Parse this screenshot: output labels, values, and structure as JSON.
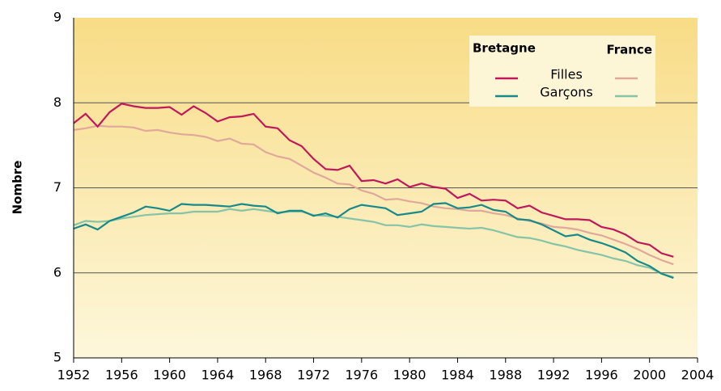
{
  "chart_data": {
    "type": "line",
    "y_label": "Nombre",
    "x": [
      1952,
      1953,
      1954,
      1955,
      1956,
      1957,
      1958,
      1959,
      1960,
      1961,
      1962,
      1963,
      1964,
      1965,
      1966,
      1967,
      1968,
      1969,
      1970,
      1971,
      1972,
      1973,
      1974,
      1975,
      1976,
      1977,
      1978,
      1979,
      1980,
      1981,
      1982,
      1983,
      1984,
      1985,
      1986,
      1987,
      1988,
      1989,
      1990,
      1991,
      1992,
      1993,
      1994,
      1995,
      1996,
      1997,
      1998,
      1999,
      2000,
      2001,
      2002
    ],
    "xlim": [
      1952,
      2004
    ],
    "xticks": [
      1952,
      1956,
      1960,
      1964,
      1968,
      1972,
      1976,
      1980,
      1984,
      1988,
      1992,
      1996,
      2000,
      2004
    ],
    "ylim": [
      5,
      9
    ],
    "yticks": [
      5,
      6,
      7,
      8,
      9
    ],
    "grid": true,
    "legend": "top-right",
    "series_groups": [
      {
        "name": "Bretagne",
        "series": [
          {
            "name": "Filles",
            "color": "#c0185a",
            "values": [
              7.76,
              7.87,
              7.72,
              7.89,
              7.99,
              7.96,
              7.94,
              7.94,
              7.95,
              7.86,
              7.96,
              7.88,
              7.78,
              7.83,
              7.84,
              7.87,
              7.72,
              7.7,
              7.56,
              7.49,
              7.34,
              7.22,
              7.21,
              7.26,
              7.08,
              7.09,
              7.05,
              7.1,
              7.01,
              7.05,
              7.01,
              6.99,
              6.88,
              6.93,
              6.85,
              6.86,
              6.85,
              6.76,
              6.79,
              6.71,
              6.67,
              6.63,
              6.63,
              6.62,
              6.54,
              6.51,
              6.45,
              6.36,
              6.33,
              6.23,
              6.19
            ]
          },
          {
            "name": "Garçons",
            "color": "#168a8a",
            "values": [
              6.52,
              6.57,
              6.51,
              6.61,
              6.66,
              6.71,
              6.78,
              6.76,
              6.73,
              6.81,
              6.8,
              6.8,
              6.79,
              6.78,
              6.81,
              6.79,
              6.78,
              6.7,
              6.73,
              6.73,
              6.67,
              6.7,
              6.65,
              6.75,
              6.8,
              6.78,
              6.76,
              6.68,
              6.7,
              6.72,
              6.81,
              6.82,
              6.76,
              6.77,
              6.8,
              6.74,
              6.72,
              6.63,
              6.62,
              6.57,
              6.5,
              6.43,
              6.45,
              6.39,
              6.35,
              6.3,
              6.24,
              6.14,
              6.08,
              5.99,
              5.94
            ]
          }
        ]
      },
      {
        "name": "France",
        "series": [
          {
            "name": "Filles",
            "color": "#e0a89a",
            "values": [
              7.68,
              7.7,
              7.73,
              7.72,
              7.72,
              7.71,
              7.67,
              7.68,
              7.65,
              7.63,
              7.62,
              7.6,
              7.55,
              7.58,
              7.52,
              7.51,
              7.42,
              7.37,
              7.34,
              7.26,
              7.18,
              7.12,
              7.05,
              7.04,
              6.97,
              6.93,
              6.86,
              6.87,
              6.84,
              6.82,
              6.78,
              6.76,
              6.75,
              6.73,
              6.73,
              6.7,
              6.68,
              6.64,
              6.61,
              6.58,
              6.54,
              6.53,
              6.51,
              6.47,
              6.44,
              6.39,
              6.34,
              6.28,
              6.21,
              6.15,
              6.1
            ]
          },
          {
            "name": "Garçons",
            "color": "#86c4a8",
            "values": [
              6.56,
              6.61,
              6.6,
              6.61,
              6.64,
              6.66,
              6.68,
              6.69,
              6.7,
              6.7,
              6.72,
              6.72,
              6.72,
              6.75,
              6.73,
              6.75,
              6.73,
              6.71,
              6.72,
              6.72,
              6.68,
              6.67,
              6.66,
              6.64,
              6.62,
              6.6,
              6.56,
              6.56,
              6.54,
              6.57,
              6.55,
              6.54,
              6.53,
              6.52,
              6.53,
              6.5,
              6.46,
              6.42,
              6.41,
              6.38,
              6.34,
              6.31,
              6.27,
              6.24,
              6.21,
              6.17,
              6.14,
              6.09,
              6.06,
              5.99,
              5.95
            ]
          }
        ]
      }
    ]
  }
}
